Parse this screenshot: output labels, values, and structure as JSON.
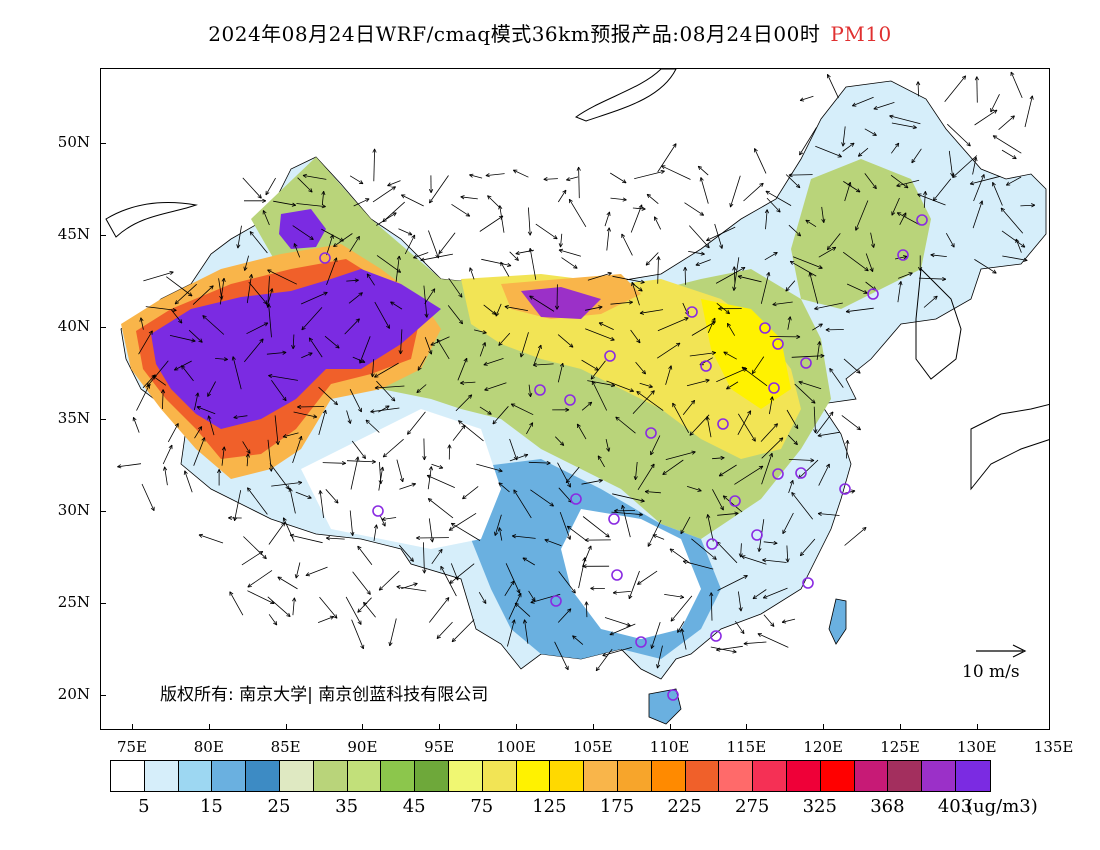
{
  "title": {
    "main": "2024年08月24日WRF/cmaq模式36km预报产品:08月24日00时",
    "highlight": "PM10"
  },
  "colors": {
    "highlight": "#e03030",
    "vector": "#000000",
    "station_marker": "#8a2be2"
  },
  "map": {
    "lat_labels": [
      "50N",
      "45N",
      "40N",
      "35N",
      "30N",
      "25N",
      "20N"
    ],
    "lon_labels": [
      "75E",
      "80E",
      "85E",
      "90E",
      "95E",
      "100E",
      "105E",
      "110E",
      "115E",
      "120E",
      "125E",
      "130E",
      "135E"
    ],
    "copyright": "版权所有: 南京大学| 南京创蓝科技有限公司",
    "reference_vector_label": "10 m/s",
    "icons": [
      "wind-vector-icon",
      "station-circle-icon"
    ]
  },
  "legend": {
    "colors": [
      "#ffffff",
      "#d6eefa",
      "#9dd7f2",
      "#6ab0e0",
      "#3d8bc4",
      "#dfe9c2",
      "#b9d47a",
      "#c2e07a",
      "#8cc64c",
      "#6ea83a",
      "#f0f772",
      "#f2e455",
      "#fff200",
      "#ffd900",
      "#f9b54a",
      "#f7a52b",
      "#ff8a00",
      "#f0602a",
      "#ff6a6a",
      "#f53055",
      "#ef0038",
      "#ff0000",
      "#c71a76",
      "#a32f5e",
      "#9b30c8",
      "#7b2be2"
    ],
    "labels": [
      "5",
      "15",
      "25",
      "35",
      "45",
      "75",
      "125",
      "175",
      "225",
      "275",
      "325",
      "368",
      "403"
    ],
    "unit": "(ug/m3)"
  }
}
